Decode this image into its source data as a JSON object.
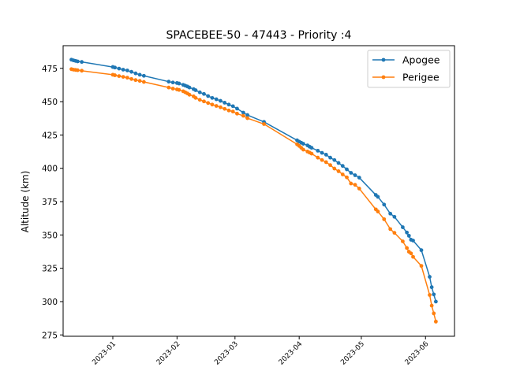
{
  "chart_data": {
    "type": "line",
    "title": "SPACEBEE-50 - 47443 - Priority :4",
    "xlabel": "",
    "ylabel": "Altitude (km)",
    "x_range": [
      "2022-12-08",
      "2023-06-15"
    ],
    "ylim": [
      274,
      492
    ],
    "x_ticks": [
      "2023-01",
      "2023-02",
      "2023-03",
      "2023-04",
      "2023-05",
      "2023-06"
    ],
    "y_ticks": [
      275,
      300,
      325,
      350,
      375,
      400,
      425,
      450,
      475
    ],
    "grid": false,
    "legend_position": "upper-right",
    "series": [
      {
        "name": "Apogee",
        "color": "#1f77b4",
        "points": [
          [
            "2022-12-12",
            481.5
          ],
          [
            "2022-12-13",
            481.0
          ],
          [
            "2022-12-14",
            480.6
          ],
          [
            "2022-12-15",
            480.2
          ],
          [
            "2022-12-17",
            479.8
          ],
          [
            "2023-01-01",
            476.0
          ],
          [
            "2023-01-02",
            475.6
          ],
          [
            "2023-01-04",
            474.8
          ],
          [
            "2023-01-06",
            474.0
          ],
          [
            "2023-01-08",
            473.4
          ],
          [
            "2023-01-10",
            472.4
          ],
          [
            "2023-01-12",
            471.2
          ],
          [
            "2023-01-14",
            470.2
          ],
          [
            "2023-01-16",
            469.4
          ],
          [
            "2023-01-28",
            465.0
          ],
          [
            "2023-01-30",
            464.4
          ],
          [
            "2023-02-01",
            464.0
          ],
          [
            "2023-02-02",
            463.6
          ],
          [
            "2023-02-04",
            462.6
          ],
          [
            "2023-02-05",
            462.0
          ],
          [
            "2023-02-06",
            461.4
          ],
          [
            "2023-02-07",
            460.6
          ],
          [
            "2023-02-09",
            459.4
          ],
          [
            "2023-02-10",
            458.6
          ],
          [
            "2023-02-12",
            457.0
          ],
          [
            "2023-02-14",
            455.8
          ],
          [
            "2023-02-16",
            454.2
          ],
          [
            "2023-02-18",
            452.8
          ],
          [
            "2023-02-20",
            451.8
          ],
          [
            "2023-02-22",
            450.6
          ],
          [
            "2023-02-24",
            449.2
          ],
          [
            "2023-02-26",
            447.8
          ],
          [
            "2023-02-28",
            446.6
          ],
          [
            "2023-03-02",
            444.8
          ],
          [
            "2023-03-05",
            441.8
          ],
          [
            "2023-03-07",
            440.0
          ],
          [
            "2023-03-15",
            434.8
          ],
          [
            "2023-03-31",
            421.0
          ],
          [
            "2023-04-01",
            420.0
          ],
          [
            "2023-04-02",
            419.2
          ],
          [
            "2023-04-03",
            418.4
          ],
          [
            "2023-04-05",
            417.2
          ],
          [
            "2023-04-06",
            416.2
          ],
          [
            "2023-04-07",
            415.4
          ],
          [
            "2023-04-10",
            413.2
          ],
          [
            "2023-04-12",
            411.6
          ],
          [
            "2023-04-14",
            410.2
          ],
          [
            "2023-04-16",
            408.0
          ],
          [
            "2023-04-18",
            406.2
          ],
          [
            "2023-04-20",
            404.0
          ],
          [
            "2023-04-22",
            401.8
          ],
          [
            "2023-04-24",
            399.2
          ],
          [
            "2023-04-26",
            396.6
          ],
          [
            "2023-04-28",
            394.8
          ],
          [
            "2023-04-30",
            393.0
          ],
          [
            "2023-05-08",
            380.0
          ],
          [
            "2023-05-09",
            378.6
          ],
          [
            "2023-05-12",
            372.8
          ],
          [
            "2023-05-15",
            366.0
          ],
          [
            "2023-05-17",
            363.6
          ],
          [
            "2023-05-21",
            355.8
          ],
          [
            "2023-05-23",
            351.8
          ],
          [
            "2023-05-24",
            349.4
          ],
          [
            "2023-05-25",
            346.4
          ],
          [
            "2023-05-26",
            345.8
          ],
          [
            "2023-05-30",
            338.6
          ],
          [
            "2023-06-03",
            318.6
          ],
          [
            "2023-06-04",
            310.8
          ],
          [
            "2023-06-05",
            305.4
          ],
          [
            "2023-06-06",
            300.0
          ]
        ]
      },
      {
        "name": "Perigee",
        "color": "#ff7f0e",
        "points": [
          [
            "2022-12-12",
            474.4
          ],
          [
            "2022-12-13",
            474.0
          ],
          [
            "2022-12-14",
            473.8
          ],
          [
            "2022-12-15",
            473.6
          ],
          [
            "2022-12-17",
            473.2
          ],
          [
            "2023-01-01",
            470.2
          ],
          [
            "2023-01-02",
            469.8
          ],
          [
            "2023-01-04",
            469.2
          ],
          [
            "2023-01-06",
            468.6
          ],
          [
            "2023-01-08",
            468.0
          ],
          [
            "2023-01-10",
            467.0
          ],
          [
            "2023-01-12",
            466.2
          ],
          [
            "2023-01-14",
            465.6
          ],
          [
            "2023-01-16",
            464.8
          ],
          [
            "2023-01-28",
            460.6
          ],
          [
            "2023-01-30",
            459.8
          ],
          [
            "2023-02-01",
            459.2
          ],
          [
            "2023-02-02",
            458.8
          ],
          [
            "2023-02-04",
            457.8
          ],
          [
            "2023-02-05",
            457.0
          ],
          [
            "2023-02-06",
            456.2
          ],
          [
            "2023-02-07",
            455.2
          ],
          [
            "2023-02-09",
            454.0
          ],
          [
            "2023-02-10",
            452.8
          ],
          [
            "2023-02-12",
            451.4
          ],
          [
            "2023-02-14",
            450.2
          ],
          [
            "2023-02-16",
            449.0
          ],
          [
            "2023-02-18",
            447.8
          ],
          [
            "2023-02-20",
            446.8
          ],
          [
            "2023-02-22",
            445.8
          ],
          [
            "2023-02-24",
            444.6
          ],
          [
            "2023-02-26",
            443.4
          ],
          [
            "2023-02-28",
            442.6
          ],
          [
            "2023-03-02",
            441.0
          ],
          [
            "2023-03-05",
            439.4
          ],
          [
            "2023-03-07",
            437.6
          ],
          [
            "2023-03-15",
            433.2
          ],
          [
            "2023-03-31",
            418.0
          ],
          [
            "2023-04-01",
            416.8
          ],
          [
            "2023-04-02",
            415.4
          ],
          [
            "2023-04-03",
            414.0
          ],
          [
            "2023-04-05",
            412.6
          ],
          [
            "2023-04-06",
            411.8
          ],
          [
            "2023-04-07",
            411.0
          ],
          [
            "2023-04-10",
            408.0
          ],
          [
            "2023-04-12",
            406.2
          ],
          [
            "2023-04-14",
            404.6
          ],
          [
            "2023-04-16",
            402.4
          ],
          [
            "2023-04-18",
            399.8
          ],
          [
            "2023-04-20",
            397.8
          ],
          [
            "2023-04-22",
            395.4
          ],
          [
            "2023-04-24",
            393.2
          ],
          [
            "2023-04-26",
            388.6
          ],
          [
            "2023-04-28",
            387.6
          ],
          [
            "2023-04-30",
            384.8
          ],
          [
            "2023-05-08",
            369.2
          ],
          [
            "2023-05-09",
            367.6
          ],
          [
            "2023-05-12",
            361.8
          ],
          [
            "2023-05-15",
            354.4
          ],
          [
            "2023-05-17",
            351.6
          ],
          [
            "2023-05-21",
            345.2
          ],
          [
            "2023-05-23",
            340.2
          ],
          [
            "2023-05-24",
            337.4
          ],
          [
            "2023-05-25",
            336.2
          ],
          [
            "2023-05-26",
            333.6
          ],
          [
            "2023-05-30",
            326.8
          ],
          [
            "2023-06-03",
            305.0
          ],
          [
            "2023-06-04",
            297.0
          ],
          [
            "2023-06-05",
            291.2
          ],
          [
            "2023-06-06",
            285.0
          ]
        ]
      }
    ]
  }
}
